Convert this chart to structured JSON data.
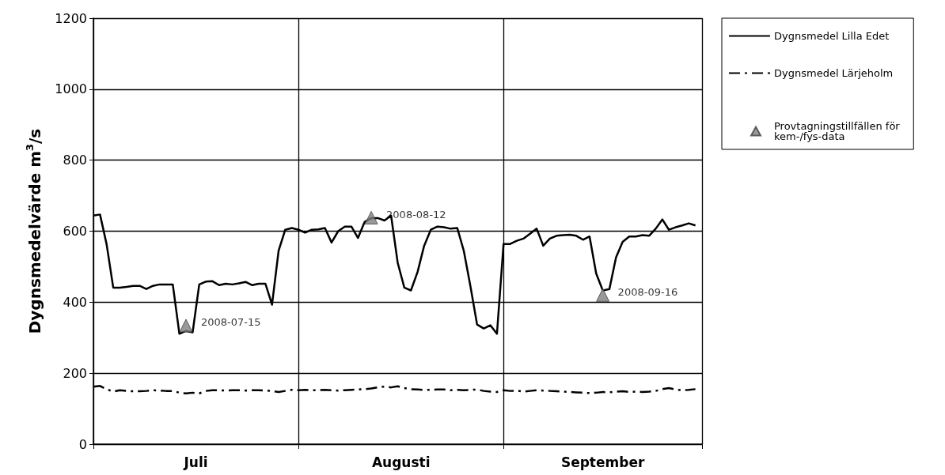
{
  "chart_data": {
    "type": "line",
    "ylabel": "Dygnsmedelvärde m$^{3}$/s",
    "ylim": [
      0,
      1200
    ],
    "yticks": [
      0,
      200,
      400,
      600,
      800,
      1000,
      1200
    ],
    "xlim": [
      "2008-07-01",
      "2008-10-01"
    ],
    "xticks": [
      {
        "value": "2008-07-01",
        "label": null
      },
      {
        "value": "2008-07-16T12:00",
        "label": "Juli"
      },
      {
        "value": "2008-08-01",
        "label": null
      },
      {
        "value": "2008-08-16T12:00",
        "label": "Augusti"
      },
      {
        "value": "2008-09-01",
        "label": null
      },
      {
        "value": "2008-09-16",
        "label": "September"
      },
      {
        "value": "2008-10-01",
        "label": null
      }
    ],
    "x": [
      "2008-07-01",
      "2008-07-02",
      "2008-07-03",
      "2008-07-04",
      "2008-07-05",
      "2008-07-06",
      "2008-07-07",
      "2008-07-08",
      "2008-07-09",
      "2008-07-10",
      "2008-07-11",
      "2008-07-12",
      "2008-07-13",
      "2008-07-14",
      "2008-07-15",
      "2008-07-16",
      "2008-07-17",
      "2008-07-18",
      "2008-07-19",
      "2008-07-20",
      "2008-07-21",
      "2008-07-22",
      "2008-07-23",
      "2008-07-24",
      "2008-07-25",
      "2008-07-26",
      "2008-07-27",
      "2008-07-28",
      "2008-07-29",
      "2008-07-30",
      "2008-07-31",
      "2008-08-01",
      "2008-08-02",
      "2008-08-03",
      "2008-08-04",
      "2008-08-05",
      "2008-08-06",
      "2008-08-07",
      "2008-08-08",
      "2008-08-09",
      "2008-08-10",
      "2008-08-11",
      "2008-08-12",
      "2008-08-13",
      "2008-08-14",
      "2008-08-15",
      "2008-08-16",
      "2008-08-17",
      "2008-08-18",
      "2008-08-19",
      "2008-08-20",
      "2008-08-21",
      "2008-08-22",
      "2008-08-23",
      "2008-08-24",
      "2008-08-25",
      "2008-08-26",
      "2008-08-27",
      "2008-08-28",
      "2008-08-29",
      "2008-08-30",
      "2008-08-31",
      "2008-09-01",
      "2008-09-02",
      "2008-09-03",
      "2008-09-04",
      "2008-09-05",
      "2008-09-06",
      "2008-09-07",
      "2008-09-08",
      "2008-09-09",
      "2008-09-10",
      "2008-09-11",
      "2008-09-12",
      "2008-09-13",
      "2008-09-14",
      "2008-09-15",
      "2008-09-16",
      "2008-09-17",
      "2008-09-18",
      "2008-09-19",
      "2008-09-20",
      "2008-09-21",
      "2008-09-22",
      "2008-09-23",
      "2008-09-24",
      "2008-09-25",
      "2008-09-26",
      "2008-09-27",
      "2008-09-28",
      "2008-09-29",
      "2008-09-30"
    ],
    "grid": true,
    "legend": "right",
    "series": [
      {
        "name": "Dygnsmedel Lilla Edet",
        "color": "#000000",
        "line_style": "solid",
        "marker": "none",
        "values": [
          644,
          647,
          563,
          441,
          441,
          443,
          446,
          446,
          437,
          446,
          450,
          450,
          450,
          311,
          319,
          315,
          450,
          458,
          459,
          448,
          452,
          450,
          453,
          457,
          448,
          452,
          452,
          393,
          545,
          604,
          609,
          604,
          596,
          604,
          605,
          609,
          568,
          600,
          613,
          613,
          581,
          626,
          637,
          637,
          630,
          644,
          511,
          441,
          433,
          485,
          559,
          604,
          613,
          611,
          607,
          609,
          544,
          444,
          337,
          326,
          335,
          311,
          564,
          564,
          573,
          579,
          593,
          607,
          559,
          579,
          587,
          589,
          590,
          587,
          576,
          585,
          481,
          433,
          437,
          526,
          570,
          585,
          585,
          589,
          587,
          607,
          633,
          604,
          611,
          616,
          622,
          616
        ]
      },
      {
        "name": "Dygnsmedel Lärjeholm",
        "color": "#000000",
        "line_style": "dashed",
        "marker": "none",
        "values": [
          162,
          164,
          155,
          148,
          152,
          150,
          149,
          149,
          150,
          152,
          151,
          150,
          150,
          145,
          143,
          145,
          143,
          150,
          152,
          152,
          151,
          152,
          152,
          151,
          152,
          152,
          151,
          150,
          147,
          150,
          153,
          152,
          153,
          152,
          152,
          153,
          152,
          151,
          152,
          153,
          154,
          155,
          157,
          160,
          162,
          160,
          163,
          158,
          155,
          154,
          153,
          153,
          154,
          154,
          152,
          153,
          152,
          153,
          154,
          150,
          148,
          147,
          152,
          150,
          151,
          148,
          150,
          152,
          151,
          150,
          149,
          148,
          147,
          146,
          145,
          144,
          145,
          147,
          146,
          148,
          149,
          147,
          148,
          147,
          148,
          150,
          155,
          158,
          154,
          152,
          153,
          155
        ]
      },
      {
        "name": "Provtagningstillfällen för kem-/fys-data",
        "type": "scatter",
        "marker": "triangle",
        "color": "#808080",
        "x": [
          "2008-07-15",
          "2008-08-12",
          "2008-09-16"
        ],
        "values": [
          334,
          638,
          420
        ]
      }
    ],
    "annotations": [
      {
        "text": "2008-07-15",
        "x": "2008-07-15",
        "y": 334
      },
      {
        "text": "2008-08-12",
        "x": "2008-08-12",
        "y": 638
      },
      {
        "text": "2008-09-16",
        "x": "2008-09-16",
        "y": 420
      }
    ]
  }
}
